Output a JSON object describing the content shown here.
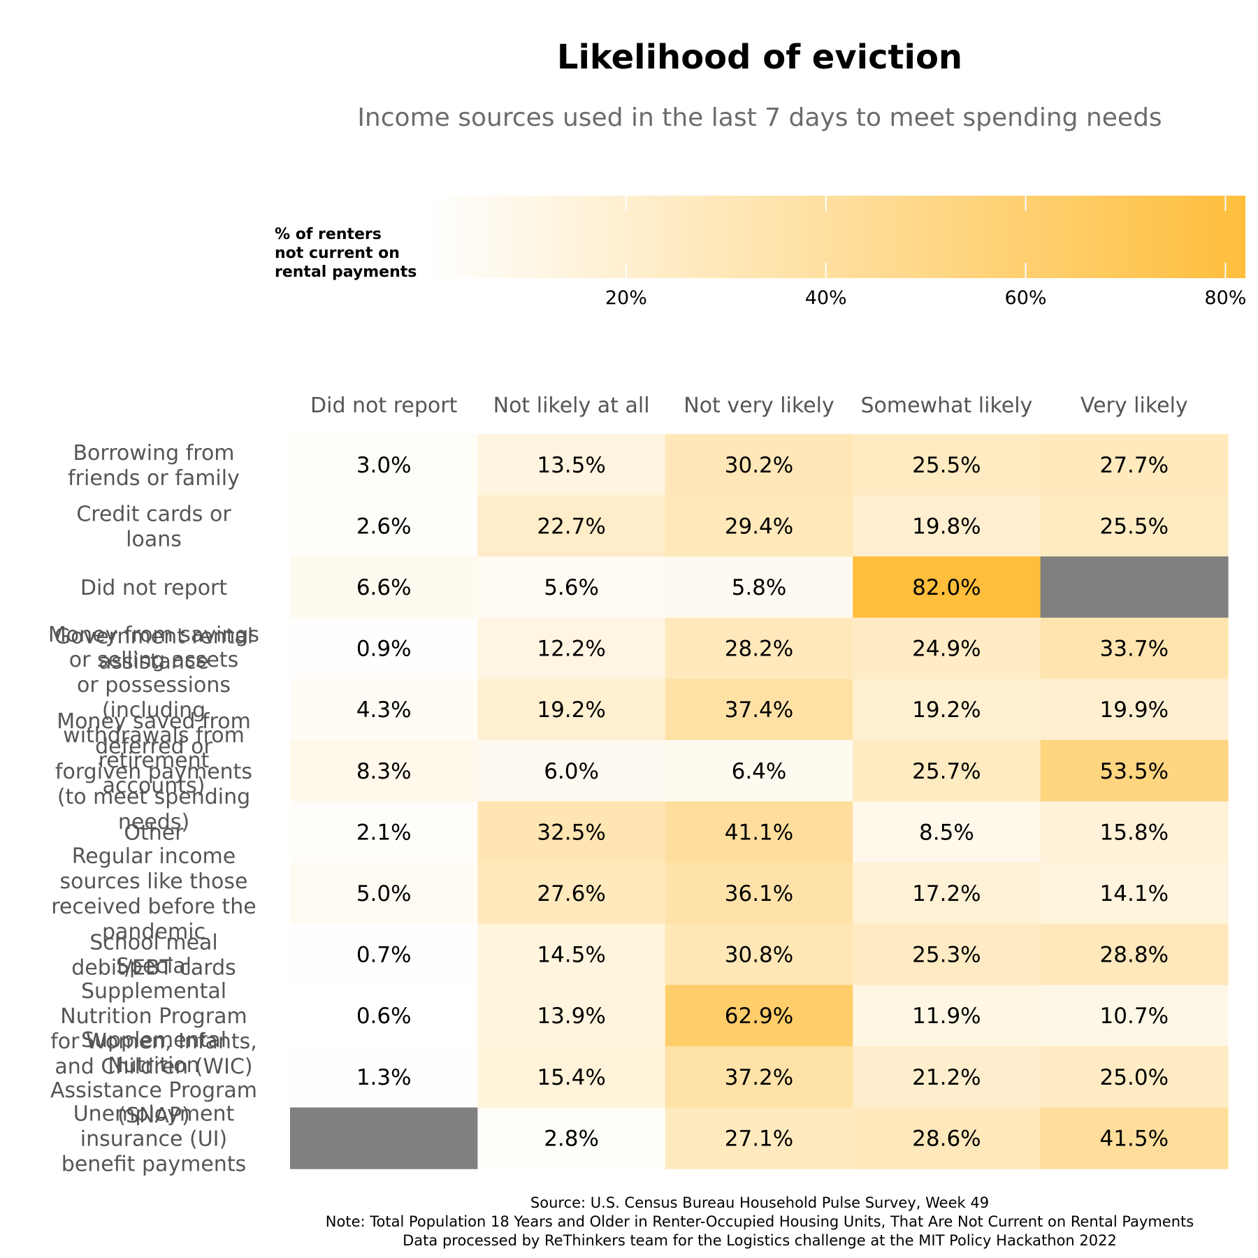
{
  "chart_data": {
    "type": "heatmap",
    "title": "Likelihood of eviction",
    "subtitle": "Income sources used in the last 7 days to meet spending needs",
    "legend": {
      "title_lines": [
        "% of renters",
        "not current on",
        "rental payments"
      ],
      "range": [
        0,
        82
      ],
      "ticks": [
        20,
        40,
        60,
        80
      ],
      "tick_labels": [
        "20%",
        "40%",
        "60%",
        "80%"
      ],
      "low_color": "#ffffff",
      "high_color": "#ffbe3c"
    },
    "columns": [
      "Did not report",
      "Not likely at all",
      "Not very likely",
      "Somewhat likely",
      "Very likely"
    ],
    "rows": [
      "Borrowing from friends or family",
      "Credit cards or loans",
      "Did not report",
      "Government rental assistance",
      "Money from savings or selling assets or possessions (including withdrawals from retirement accounts)",
      "Money saved from deferred or forgiven payments (to meet spending needs)",
      "Other",
      "Regular income sources like those received before the pandemic",
      "School meal debit/EBT cards",
      "Special Supplemental Nutrition Program for Women, Infants, and Children (WIC)",
      "Supplemental Nutrition Assistance Program (SNAP)",
      "Unemployment insurance (UI) benefit payments"
    ],
    "row_label_lines": [
      [
        "Borrowing from",
        "friends or family"
      ],
      [
        "Credit cards or",
        "loans"
      ],
      [
        "Did not report"
      ],
      [
        "Government rental",
        "assistance"
      ],
      [
        "Money from savings",
        "or selling assets",
        "or possessions",
        "(including",
        "withdrawals from",
        "retirement",
        "accounts)"
      ],
      [
        "Money saved from",
        "deferred or",
        "forgiven payments",
        "(to meet spending",
        "needs)"
      ],
      [
        "Other"
      ],
      [
        "Regular income",
        "sources like those",
        "received before the",
        "pandemic"
      ],
      [
        "School meal",
        "debit/EBT cards"
      ],
      [
        "Special",
        "Supplemental",
        "Nutrition Program",
        "for Women, Infants,",
        "and Children (WIC)"
      ],
      [
        "Supplemental",
        "Nutrition",
        "Assistance Program",
        "(SNAP)"
      ],
      [
        "Unemployment",
        "insurance (UI)",
        "benefit payments"
      ]
    ],
    "values": [
      [
        3.0,
        13.5,
        30.2,
        25.5,
        27.7
      ],
      [
        2.6,
        22.7,
        29.4,
        19.8,
        25.5
      ],
      [
        6.6,
        5.6,
        5.8,
        82.0,
        null
      ],
      [
        0.9,
        12.2,
        28.2,
        24.9,
        33.7
      ],
      [
        4.3,
        19.2,
        37.4,
        19.2,
        19.9
      ],
      [
        8.3,
        6.0,
        6.4,
        25.7,
        53.5
      ],
      [
        2.1,
        32.5,
        41.1,
        8.5,
        15.8
      ],
      [
        5.0,
        27.6,
        36.1,
        17.2,
        14.1
      ],
      [
        0.7,
        14.5,
        30.8,
        25.3,
        28.8
      ],
      [
        0.6,
        13.9,
        62.9,
        11.9,
        10.7
      ],
      [
        1.3,
        15.4,
        37.2,
        21.2,
        25.0
      ],
      [
        null,
        2.8,
        27.1,
        28.6,
        41.5
      ]
    ],
    "missing_color": "#808080",
    "captions": [
      "Source: U.S. Census Bureau Household Pulse Survey, Week 49",
      "Note: Total Population 18 Years and Older in Renter-Occupied Housing Units, That Are Not Current on Rental Payments",
      "Data processed by ReThinkers team for the Logistics challenge at the MIT Policy Hackathon 2022"
    ]
  }
}
